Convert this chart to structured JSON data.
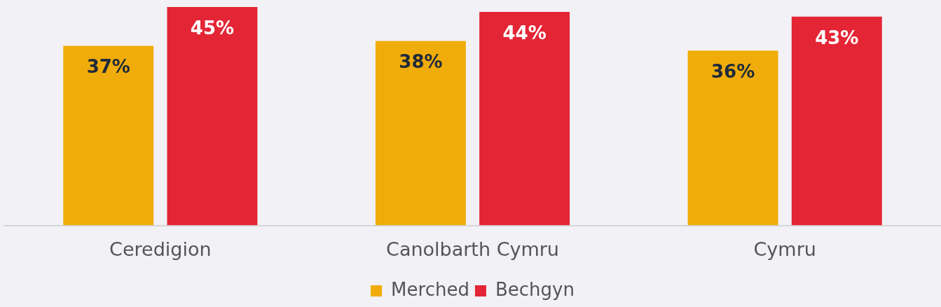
{
  "chart_data": {
    "type": "bar",
    "categories": [
      "Ceredigion",
      "Canolbarth Cymru",
      "Cymru"
    ],
    "series": [
      {
        "name": "Merched",
        "color": "#f0ac0a",
        "values": [
          37,
          38,
          36
        ],
        "value_labels": [
          "37%",
          "38%",
          "36%"
        ]
      },
      {
        "name": "Bechgyn",
        "color": "#e42535",
        "values": [
          45,
          44,
          43
        ],
        "value_labels": [
          "45%",
          "44%",
          "43%"
        ]
      }
    ],
    "legend": "bottom",
    "grid": false
  }
}
